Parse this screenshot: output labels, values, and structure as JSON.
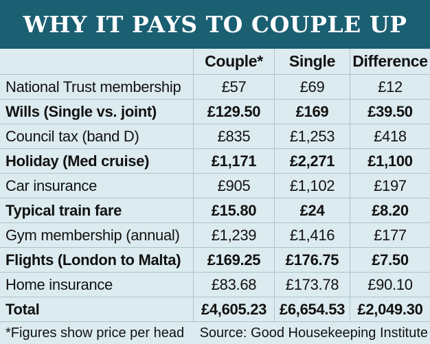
{
  "title": "WHY IT PAYS TO COUPLE UP",
  "columns": [
    "",
    "Couple*",
    "Single",
    "Difference"
  ],
  "rows": [
    {
      "label": "National Trust membership",
      "couple": "£57",
      "single": "£69",
      "difference": "£12",
      "bold": false
    },
    {
      "label": "Wills (Single vs. joint)",
      "couple": "£129.50",
      "single": "£169",
      "difference": "£39.50",
      "bold": true
    },
    {
      "label": "Council tax (band D)",
      "couple": "£835",
      "single": "£1,253",
      "difference": "£418",
      "bold": false
    },
    {
      "label": "Holiday (Med cruise)",
      "couple": "£1,171",
      "single": "£2,271",
      "difference": "£1,100",
      "bold": true
    },
    {
      "label": "Car insurance",
      "couple": "£905",
      "single": "£1,102",
      "difference": "£197",
      "bold": false
    },
    {
      "label": "Typical train fare",
      "couple": "£15.80",
      "single": "£24",
      "difference": "£8.20",
      "bold": true
    },
    {
      "label": "Gym membership (annual)",
      "couple": "£1,239",
      "single": "£1,416",
      "difference": "£177",
      "bold": false
    },
    {
      "label": "Flights (London to Malta)",
      "couple": "£169.25",
      "single": "£176.75",
      "difference": "£7.50",
      "bold": true
    },
    {
      "label": "Home insurance",
      "couple": "£83.68",
      "single": "£173.78",
      "difference": "£90.10",
      "bold": false
    },
    {
      "label": "Total",
      "couple": "£4,605.23",
      "single": "£6,654.53",
      "difference": "£2,049.30",
      "bold": true
    }
  ],
  "footnote": {
    "note": "*Figures show price per head",
    "source": "Source: Good Housekeeping Institute"
  },
  "colors": {
    "banner": "#1b5f72",
    "background": "#dcebef",
    "gridline": "#a9c4cc"
  }
}
